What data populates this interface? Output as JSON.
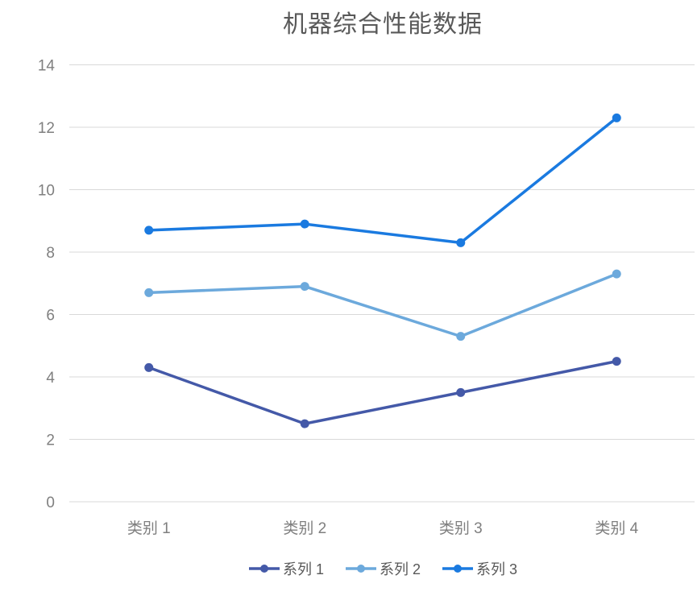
{
  "chart_data": {
    "type": "line",
    "title": "机器综合性能数据",
    "categories": [
      "类别 1",
      "类别 2",
      "类别 3",
      "类别 4"
    ],
    "series": [
      {
        "name": "系列 1",
        "values": [
          4.3,
          2.5,
          3.5,
          4.5
        ],
        "color": "#4459A8"
      },
      {
        "name": "系列 2",
        "values": [
          6.7,
          6.9,
          5.3,
          7.3
        ],
        "color": "#6CA9DC"
      },
      {
        "name": "系列 3",
        "values": [
          8.7,
          8.9,
          8.3,
          12.3
        ],
        "color": "#1A7AE0"
      }
    ],
    "xlabel": "",
    "ylabel": "",
    "ylim": [
      0,
      14
    ],
    "yticks": [
      0,
      2,
      4,
      6,
      8,
      10,
      12,
      14
    ],
    "grid": "horizontal",
    "gridline_color": "#D9D9D9",
    "legend_position": "bottom",
    "marker": "circle",
    "title_color": "#595959",
    "axis_label_color": "#7F7F7F"
  }
}
